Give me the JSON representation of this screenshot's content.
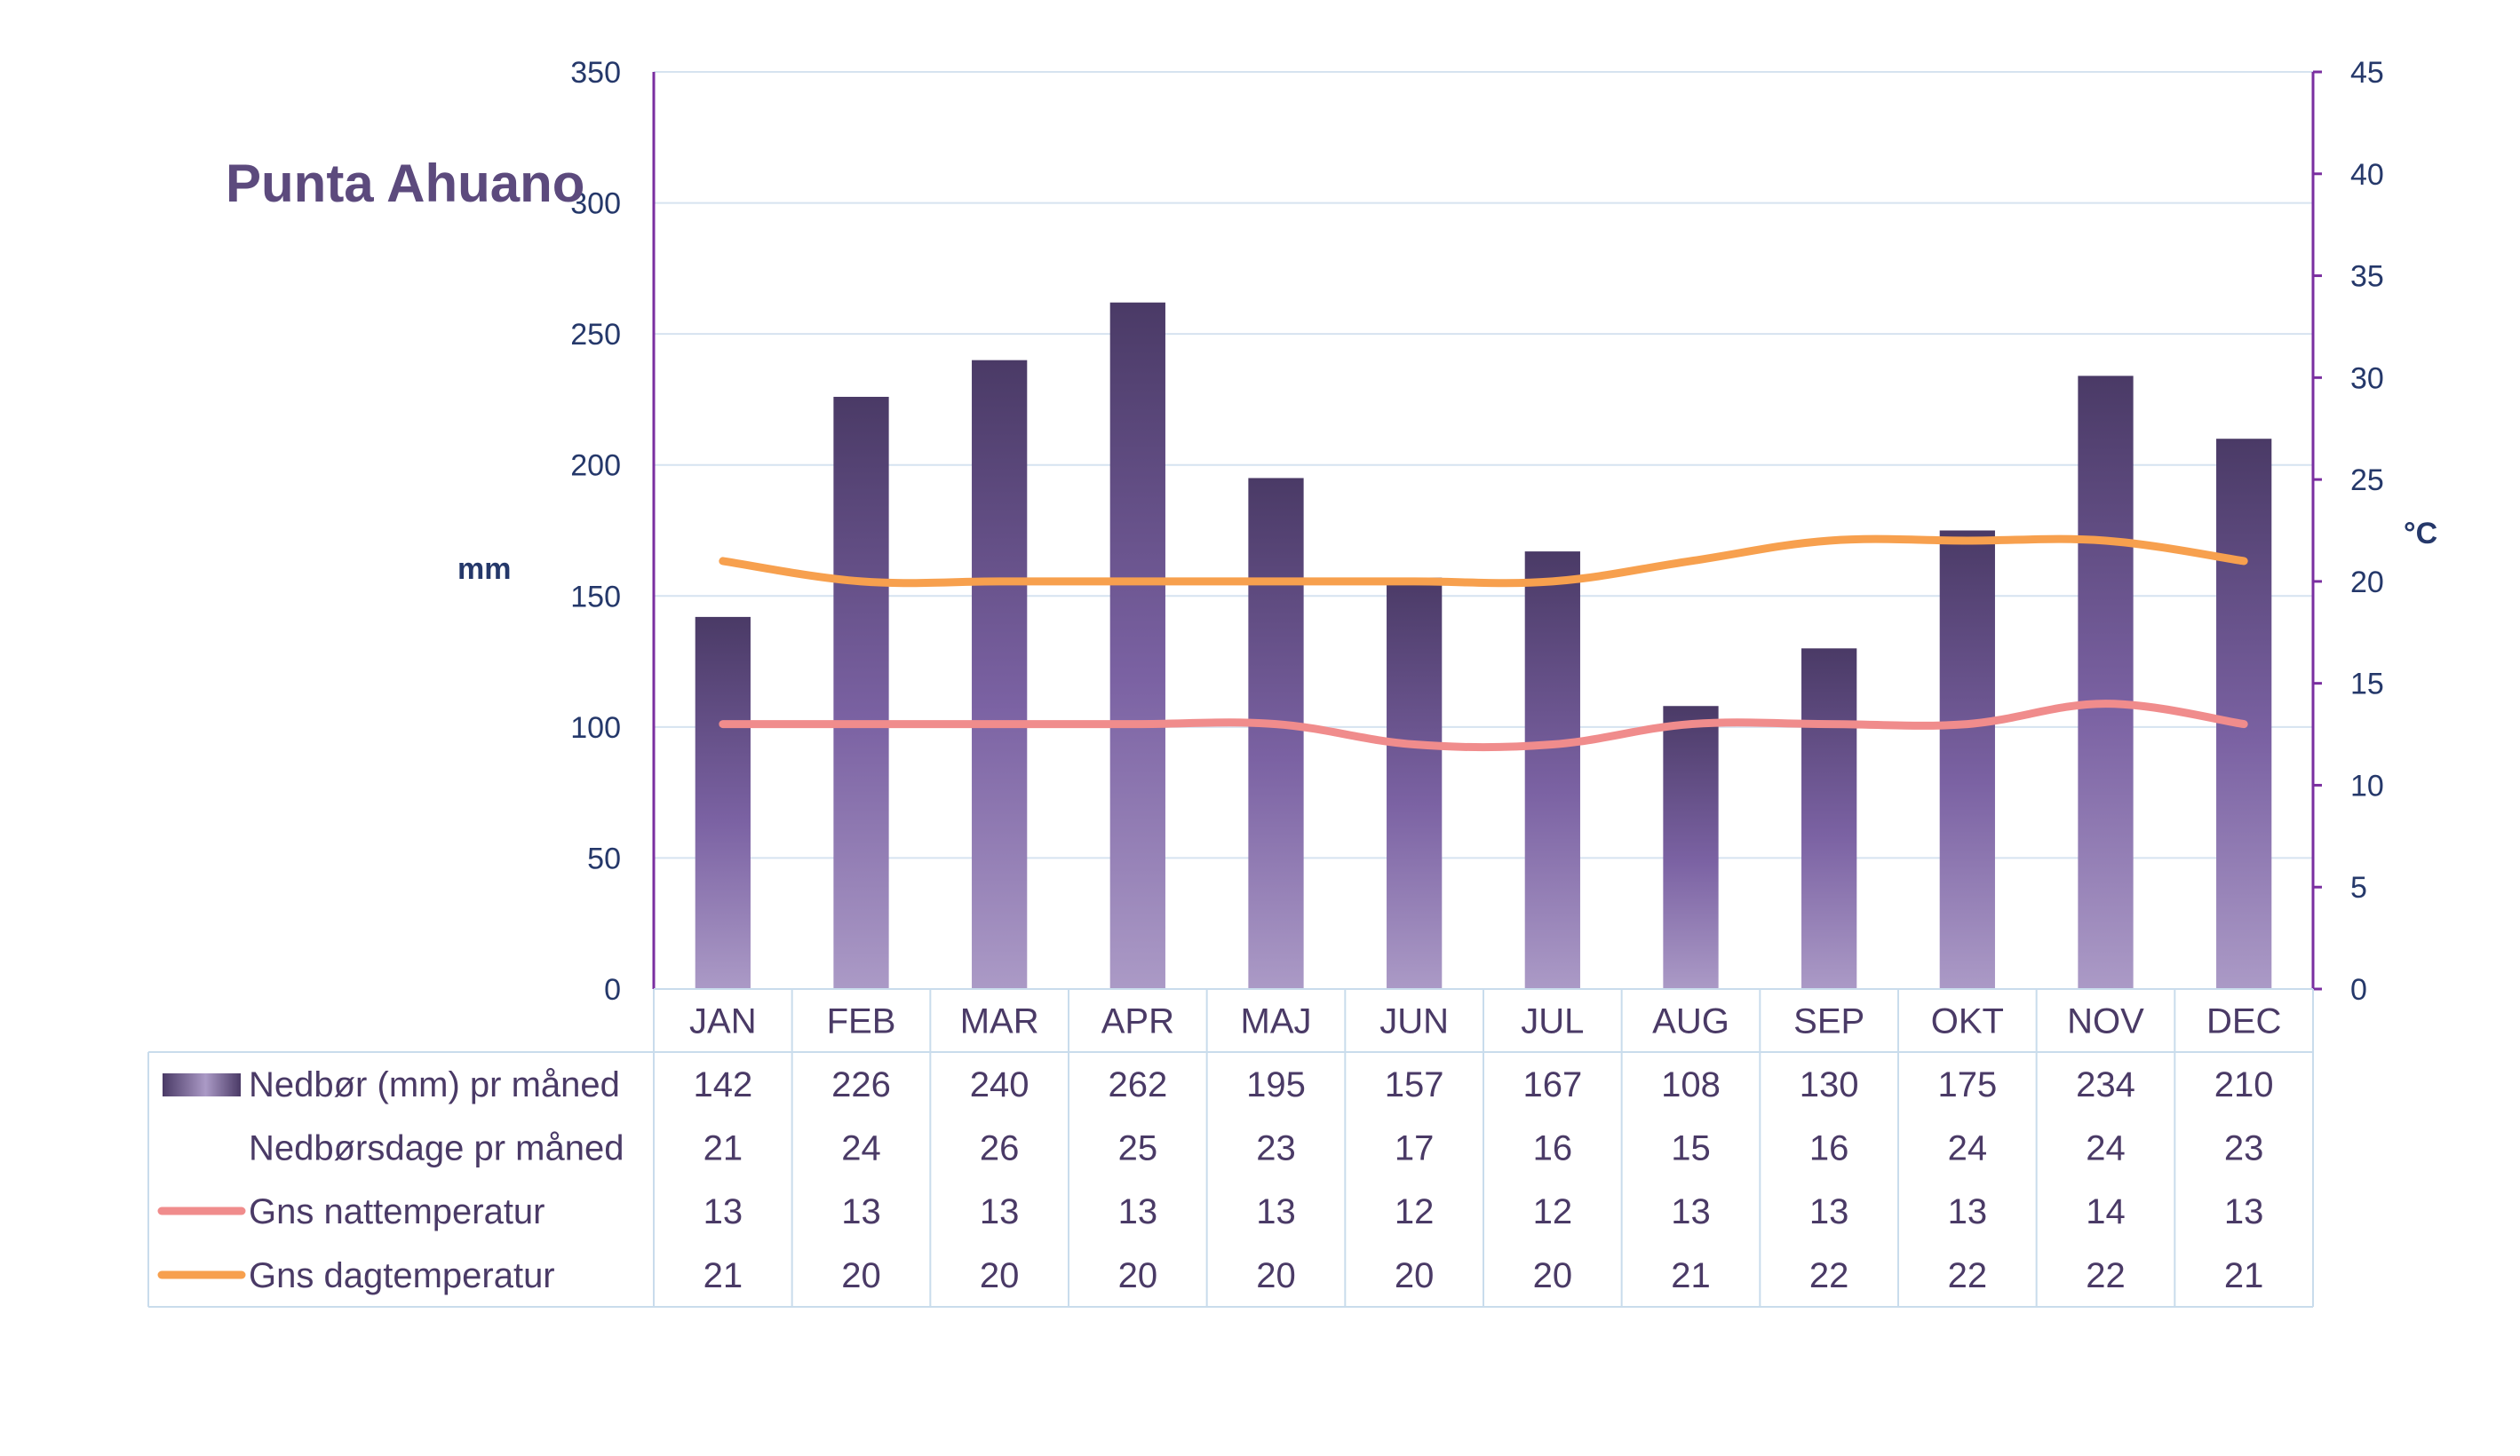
{
  "colors": {
    "bar_top": "#4a3a66",
    "bar_mid": "#7b62a3",
    "bar_bottom": "#ab9ac6",
    "night": "#f08c8c",
    "day": "#f7a04e",
    "title": "#5c4a7d",
    "left_ticks": "#25386a",
    "right_ticks": "#25386a",
    "text": "#4a3a66",
    "grid": "#d6e3f0",
    "axis": "#7a2fa0",
    "table_border": "#c9dcec"
  },
  "chart_data": {
    "type": "bar",
    "title": "Punta Ahuano",
    "categories": [
      "JAN",
      "FEB",
      "MAR",
      "APR",
      "MAJ",
      "JUN",
      "JUL",
      "AUG",
      "SEP",
      "OKT",
      "NOV",
      "DEC"
    ],
    "y_left": {
      "label": "mm",
      "ylim": [
        0,
        350
      ],
      "ticks": [
        0,
        50,
        100,
        150,
        200,
        250,
        300,
        350
      ]
    },
    "y_right": {
      "label": "°C",
      "ylim": [
        0,
        45
      ],
      "ticks": [
        0,
        5,
        10,
        15,
        20,
        25,
        30,
        35,
        40,
        45
      ]
    },
    "grid": true,
    "legend": "table-bottom",
    "series": [
      {
        "name": "Nedbør (mm) pr måned",
        "type": "bar",
        "axis": "left",
        "values": [
          142,
          226,
          240,
          262,
          195,
          157,
          167,
          108,
          130,
          175,
          234,
          210
        ]
      },
      {
        "name": "Nedbørsdage pr måned",
        "type": "table",
        "values": [
          21,
          24,
          26,
          25,
          23,
          17,
          16,
          15,
          16,
          24,
          24,
          23
        ]
      },
      {
        "name": "Gns nattemperatur",
        "type": "line",
        "axis": "right",
        "values": [
          13,
          13,
          13,
          13,
          13,
          12,
          12,
          13,
          13,
          13,
          14,
          13
        ]
      },
      {
        "name": "Gns dagtemperatur",
        "type": "line",
        "axis": "right",
        "values": [
          21,
          20,
          20,
          20,
          20,
          20,
          20,
          21,
          22,
          22,
          22,
          21
        ]
      }
    ]
  }
}
